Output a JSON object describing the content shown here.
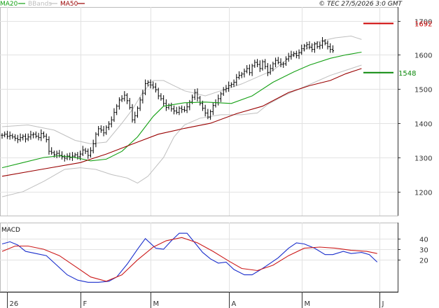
{
  "header": {
    "legend": [
      {
        "label": "MA20",
        "color": "#14a014"
      },
      {
        "label": "BBands",
        "color": "#bfbfbf"
      },
      {
        "label": "MA50",
        "color": "#990000"
      }
    ],
    "copyright": "© TEC 27/5/2026 3:0 GMT"
  },
  "chart_data": [
    {
      "type": "ohlc",
      "name": "price",
      "ylim": [
        1130,
        1740
      ],
      "yticks": [
        1200,
        1300,
        1400,
        1500,
        1600,
        1700
      ],
      "grid": true,
      "months": [
        {
          "label": "26",
          "day": 2
        },
        {
          "label": "F",
          "day": 30
        },
        {
          "label": "M",
          "day": 57
        },
        {
          "label": "A",
          "day": 87
        },
        {
          "label": "M",
          "day": 115
        },
        {
          "label": "J",
          "day": 145
        }
      ],
      "close": [
        1365,
        1368,
        1362,
        1364,
        1360,
        1356,
        1352,
        1358,
        1362,
        1354,
        1360,
        1366,
        1368,
        1362,
        1358,
        1370,
        1362,
        1352,
        1318,
        1314,
        1308,
        1312,
        1306,
        1302,
        1298,
        1304,
        1300,
        1304,
        1308,
        1302,
        1310,
        1322,
        1318,
        1306,
        1320,
        1340,
        1368,
        1384,
        1380,
        1372,
        1388,
        1398,
        1410,
        1432,
        1450,
        1468,
        1472,
        1482,
        1466,
        1446,
        1410,
        1422,
        1444,
        1468,
        1488,
        1516,
        1520,
        1512,
        1506,
        1498,
        1480,
        1472,
        1458,
        1446,
        1452,
        1442,
        1436,
        1432,
        1444,
        1440,
        1438,
        1448,
        1462,
        1476,
        1490,
        1474,
        1458,
        1444,
        1430,
        1418,
        1434,
        1452,
        1460,
        1472,
        1486,
        1498,
        1502,
        1510,
        1514,
        1520,
        1534,
        1540,
        1544,
        1552,
        1560,
        1548,
        1568,
        1578,
        1572,
        1560,
        1580,
        1566,
        1548,
        1560,
        1574,
        1584,
        1578,
        1572,
        1574,
        1588,
        1596,
        1600,
        1604,
        1598,
        1606,
        1618,
        1626,
        1630,
        1622,
        1616,
        1632,
        1624,
        1628,
        1640,
        1634,
        1624,
        1616,
        1612
      ],
      "series": [
        {
          "name": "MA20",
          "color": "#14a014",
          "points": [
            [
              0,
              1270
            ],
            [
              8,
              1285
            ],
            [
              16,
              1300
            ],
            [
              22,
              1305
            ],
            [
              28,
              1300
            ],
            [
              34,
              1290
            ],
            [
              40,
              1295
            ],
            [
              46,
              1318
            ],
            [
              52,
              1360
            ],
            [
              58,
              1420
            ],
            [
              62,
              1450
            ],
            [
              70,
              1460
            ],
            [
              78,
              1462
            ],
            [
              88,
              1458
            ],
            [
              96,
              1480
            ],
            [
              104,
              1520
            ],
            [
              112,
              1550
            ],
            [
              118,
              1570
            ],
            [
              126,
              1590
            ],
            [
              132,
              1600
            ],
            [
              138,
              1608
            ]
          ]
        },
        {
          "name": "MA50",
          "color": "#990000",
          "points": [
            [
              0,
              1245
            ],
            [
              15,
              1265
            ],
            [
              30,
              1285
            ],
            [
              40,
              1310
            ],
            [
              52,
              1345
            ],
            [
              60,
              1368
            ],
            [
              70,
              1385
            ],
            [
              80,
              1400
            ],
            [
              90,
              1428
            ],
            [
              100,
              1450
            ],
            [
              110,
              1490
            ],
            [
              118,
              1510
            ],
            [
              126,
              1525
            ],
            [
              132,
              1545
            ],
            [
              138,
              1560
            ]
          ]
        },
        {
          "name": "BB upper",
          "color": "#bfbfbf",
          "points": [
            [
              0,
              1390
            ],
            [
              10,
              1395
            ],
            [
              20,
              1380
            ],
            [
              28,
              1350
            ],
            [
              34,
              1340
            ],
            [
              40,
              1345
            ],
            [
              46,
              1400
            ],
            [
              50,
              1440
            ],
            [
              54,
              1490
            ],
            [
              58,
              1525
            ],
            [
              62,
              1525
            ],
            [
              66,
              1510
            ],
            [
              70,
              1495
            ],
            [
              78,
              1480
            ],
            [
              86,
              1500
            ],
            [
              92,
              1515
            ],
            [
              98,
              1535
            ],
            [
              104,
              1555
            ],
            [
              110,
              1590
            ],
            [
              116,
              1615
            ],
            [
              122,
              1640
            ],
            [
              128,
              1650
            ],
            [
              134,
              1655
            ],
            [
              138,
              1645
            ]
          ]
        },
        {
          "name": "BB lower",
          "color": "#bfbfbf",
          "points": [
            [
              0,
              1185
            ],
            [
              8,
              1200
            ],
            [
              16,
              1230
            ],
            [
              24,
              1265
            ],
            [
              30,
              1270
            ],
            [
              36,
              1265
            ],
            [
              42,
              1250
            ],
            [
              48,
              1240
            ],
            [
              52,
              1225
            ],
            [
              56,
              1245
            ],
            [
              62,
              1300
            ],
            [
              66,
              1360
            ],
            [
              70,
              1395
            ],
            [
              76,
              1415
            ],
            [
              84,
              1425
            ],
            [
              92,
              1425
            ],
            [
              98,
              1430
            ],
            [
              102,
              1455
            ],
            [
              108,
              1480
            ],
            [
              114,
              1500
            ],
            [
              120,
              1520
            ],
            [
              126,
              1540
            ],
            [
              132,
              1555
            ],
            [
              138,
              1570
            ]
          ]
        }
      ],
      "levels": [
        {
          "label": "1692",
          "value": 1692,
          "color": "#cc0000"
        },
        {
          "label": "1548",
          "value": 1548,
          "color": "#0a880a"
        }
      ]
    },
    {
      "type": "line",
      "name": "macd",
      "title": "MACD",
      "ylim": [
        -10,
        55
      ],
      "yticks": [
        20,
        30,
        40
      ],
      "grid": true,
      "series": [
        {
          "name": "MACD",
          "color": "#1a2ecc",
          "points": [
            [
              0,
              35
            ],
            [
              3,
              37
            ],
            [
              6,
              34
            ],
            [
              9,
              28
            ],
            [
              13,
              26
            ],
            [
              17,
              24
            ],
            [
              21,
              15
            ],
            [
              25,
              6
            ],
            [
              29,
              1
            ],
            [
              33,
              -1
            ],
            [
              37,
              -1
            ],
            [
              41,
              0
            ],
            [
              44,
              4
            ],
            [
              48,
              16
            ],
            [
              52,
              30
            ],
            [
              55,
              40
            ],
            [
              59,
              31
            ],
            [
              62,
              30
            ],
            [
              65,
              38
            ],
            [
              68,
              45
            ],
            [
              71,
              45
            ],
            [
              74,
              36
            ],
            [
              77,
              27
            ],
            [
              80,
              21
            ],
            [
              83,
              17
            ],
            [
              86,
              18
            ],
            [
              89,
              11
            ],
            [
              93,
              6
            ],
            [
              96,
              6
            ],
            [
              100,
              12
            ],
            [
              103,
              17
            ],
            [
              106,
              22
            ],
            [
              110,
              31
            ],
            [
              113,
              36
            ],
            [
              116,
              35
            ],
            [
              120,
              31
            ],
            [
              124,
              25
            ],
            [
              127,
              25
            ],
            [
              131,
              28
            ],
            [
              134,
              26
            ],
            [
              138,
              27
            ],
            [
              141,
              25
            ],
            [
              144,
              18
            ]
          ]
        },
        {
          "name": "Signal",
          "color": "#cc1a1a",
          "points": [
            [
              0,
              28
            ],
            [
              5,
              33
            ],
            [
              10,
              33
            ],
            [
              16,
              30
            ],
            [
              22,
              24
            ],
            [
              28,
              14
            ],
            [
              34,
              4
            ],
            [
              40,
              0
            ],
            [
              46,
              6
            ],
            [
              52,
              20
            ],
            [
              58,
              32
            ],
            [
              63,
              38
            ],
            [
              69,
              41
            ],
            [
              75,
              36
            ],
            [
              81,
              28
            ],
            [
              87,
              19
            ],
            [
              92,
              12
            ],
            [
              98,
              10
            ],
            [
              104,
              15
            ],
            [
              110,
              24
            ],
            [
              116,
              31
            ],
            [
              122,
              32
            ],
            [
              128,
              31
            ],
            [
              134,
              29
            ],
            [
              140,
              28
            ],
            [
              144,
              26
            ]
          ]
        }
      ]
    }
  ]
}
